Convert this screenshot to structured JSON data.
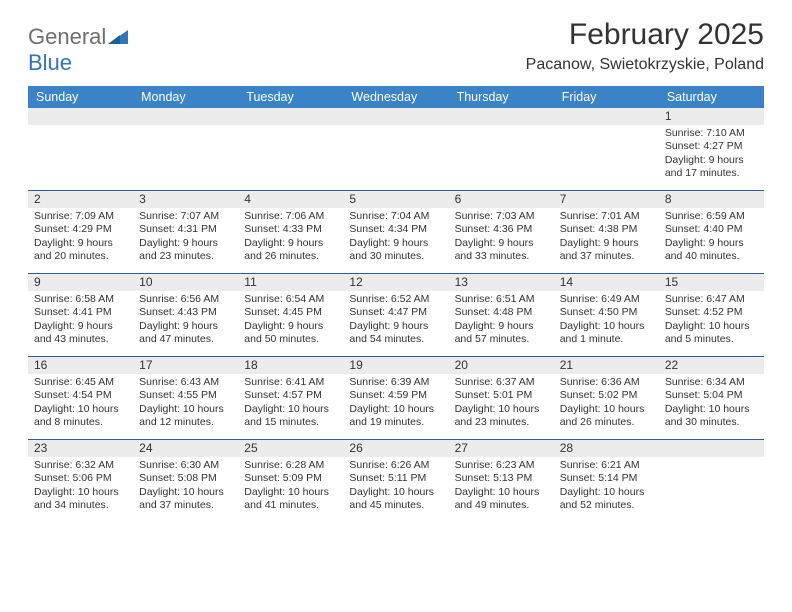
{
  "logo": {
    "general": "General",
    "blue": "Blue"
  },
  "title": "February 2025",
  "location": "Pacanow, Swietokrzyskie, Poland",
  "colors": {
    "header_bg": "#3a83c6",
    "header_text": "#ffffff",
    "daynum_bg": "#ececec",
    "row_border": "#2f5f8f",
    "logo_gray": "#6d6e71",
    "logo_blue": "#2f76bb",
    "body_text": "#333333"
  },
  "weekdays": [
    "Sunday",
    "Monday",
    "Tuesday",
    "Wednesday",
    "Thursday",
    "Friday",
    "Saturday"
  ],
  "weeks": [
    [
      {
        "n": "",
        "sr": "",
        "ss": "",
        "dl": ""
      },
      {
        "n": "",
        "sr": "",
        "ss": "",
        "dl": ""
      },
      {
        "n": "",
        "sr": "",
        "ss": "",
        "dl": ""
      },
      {
        "n": "",
        "sr": "",
        "ss": "",
        "dl": ""
      },
      {
        "n": "",
        "sr": "",
        "ss": "",
        "dl": ""
      },
      {
        "n": "",
        "sr": "",
        "ss": "",
        "dl": ""
      },
      {
        "n": "1",
        "sr": "Sunrise: 7:10 AM",
        "ss": "Sunset: 4:27 PM",
        "dl": "Daylight: 9 hours and 17 minutes."
      }
    ],
    [
      {
        "n": "2",
        "sr": "Sunrise: 7:09 AM",
        "ss": "Sunset: 4:29 PM",
        "dl": "Daylight: 9 hours and 20 minutes."
      },
      {
        "n": "3",
        "sr": "Sunrise: 7:07 AM",
        "ss": "Sunset: 4:31 PM",
        "dl": "Daylight: 9 hours and 23 minutes."
      },
      {
        "n": "4",
        "sr": "Sunrise: 7:06 AM",
        "ss": "Sunset: 4:33 PM",
        "dl": "Daylight: 9 hours and 26 minutes."
      },
      {
        "n": "5",
        "sr": "Sunrise: 7:04 AM",
        "ss": "Sunset: 4:34 PM",
        "dl": "Daylight: 9 hours and 30 minutes."
      },
      {
        "n": "6",
        "sr": "Sunrise: 7:03 AM",
        "ss": "Sunset: 4:36 PM",
        "dl": "Daylight: 9 hours and 33 minutes."
      },
      {
        "n": "7",
        "sr": "Sunrise: 7:01 AM",
        "ss": "Sunset: 4:38 PM",
        "dl": "Daylight: 9 hours and 37 minutes."
      },
      {
        "n": "8",
        "sr": "Sunrise: 6:59 AM",
        "ss": "Sunset: 4:40 PM",
        "dl": "Daylight: 9 hours and 40 minutes."
      }
    ],
    [
      {
        "n": "9",
        "sr": "Sunrise: 6:58 AM",
        "ss": "Sunset: 4:41 PM",
        "dl": "Daylight: 9 hours and 43 minutes."
      },
      {
        "n": "10",
        "sr": "Sunrise: 6:56 AM",
        "ss": "Sunset: 4:43 PM",
        "dl": "Daylight: 9 hours and 47 minutes."
      },
      {
        "n": "11",
        "sr": "Sunrise: 6:54 AM",
        "ss": "Sunset: 4:45 PM",
        "dl": "Daylight: 9 hours and 50 minutes."
      },
      {
        "n": "12",
        "sr": "Sunrise: 6:52 AM",
        "ss": "Sunset: 4:47 PM",
        "dl": "Daylight: 9 hours and 54 minutes."
      },
      {
        "n": "13",
        "sr": "Sunrise: 6:51 AM",
        "ss": "Sunset: 4:48 PM",
        "dl": "Daylight: 9 hours and 57 minutes."
      },
      {
        "n": "14",
        "sr": "Sunrise: 6:49 AM",
        "ss": "Sunset: 4:50 PM",
        "dl": "Daylight: 10 hours and 1 minute."
      },
      {
        "n": "15",
        "sr": "Sunrise: 6:47 AM",
        "ss": "Sunset: 4:52 PM",
        "dl": "Daylight: 10 hours and 5 minutes."
      }
    ],
    [
      {
        "n": "16",
        "sr": "Sunrise: 6:45 AM",
        "ss": "Sunset: 4:54 PM",
        "dl": "Daylight: 10 hours and 8 minutes."
      },
      {
        "n": "17",
        "sr": "Sunrise: 6:43 AM",
        "ss": "Sunset: 4:55 PM",
        "dl": "Daylight: 10 hours and 12 minutes."
      },
      {
        "n": "18",
        "sr": "Sunrise: 6:41 AM",
        "ss": "Sunset: 4:57 PM",
        "dl": "Daylight: 10 hours and 15 minutes."
      },
      {
        "n": "19",
        "sr": "Sunrise: 6:39 AM",
        "ss": "Sunset: 4:59 PM",
        "dl": "Daylight: 10 hours and 19 minutes."
      },
      {
        "n": "20",
        "sr": "Sunrise: 6:37 AM",
        "ss": "Sunset: 5:01 PM",
        "dl": "Daylight: 10 hours and 23 minutes."
      },
      {
        "n": "21",
        "sr": "Sunrise: 6:36 AM",
        "ss": "Sunset: 5:02 PM",
        "dl": "Daylight: 10 hours and 26 minutes."
      },
      {
        "n": "22",
        "sr": "Sunrise: 6:34 AM",
        "ss": "Sunset: 5:04 PM",
        "dl": "Daylight: 10 hours and 30 minutes."
      }
    ],
    [
      {
        "n": "23",
        "sr": "Sunrise: 6:32 AM",
        "ss": "Sunset: 5:06 PM",
        "dl": "Daylight: 10 hours and 34 minutes."
      },
      {
        "n": "24",
        "sr": "Sunrise: 6:30 AM",
        "ss": "Sunset: 5:08 PM",
        "dl": "Daylight: 10 hours and 37 minutes."
      },
      {
        "n": "25",
        "sr": "Sunrise: 6:28 AM",
        "ss": "Sunset: 5:09 PM",
        "dl": "Daylight: 10 hours and 41 minutes."
      },
      {
        "n": "26",
        "sr": "Sunrise: 6:26 AM",
        "ss": "Sunset: 5:11 PM",
        "dl": "Daylight: 10 hours and 45 minutes."
      },
      {
        "n": "27",
        "sr": "Sunrise: 6:23 AM",
        "ss": "Sunset: 5:13 PM",
        "dl": "Daylight: 10 hours and 49 minutes."
      },
      {
        "n": "28",
        "sr": "Sunrise: 6:21 AM",
        "ss": "Sunset: 5:14 PM",
        "dl": "Daylight: 10 hours and 52 minutes."
      },
      {
        "n": "",
        "sr": "",
        "ss": "",
        "dl": ""
      }
    ]
  ]
}
